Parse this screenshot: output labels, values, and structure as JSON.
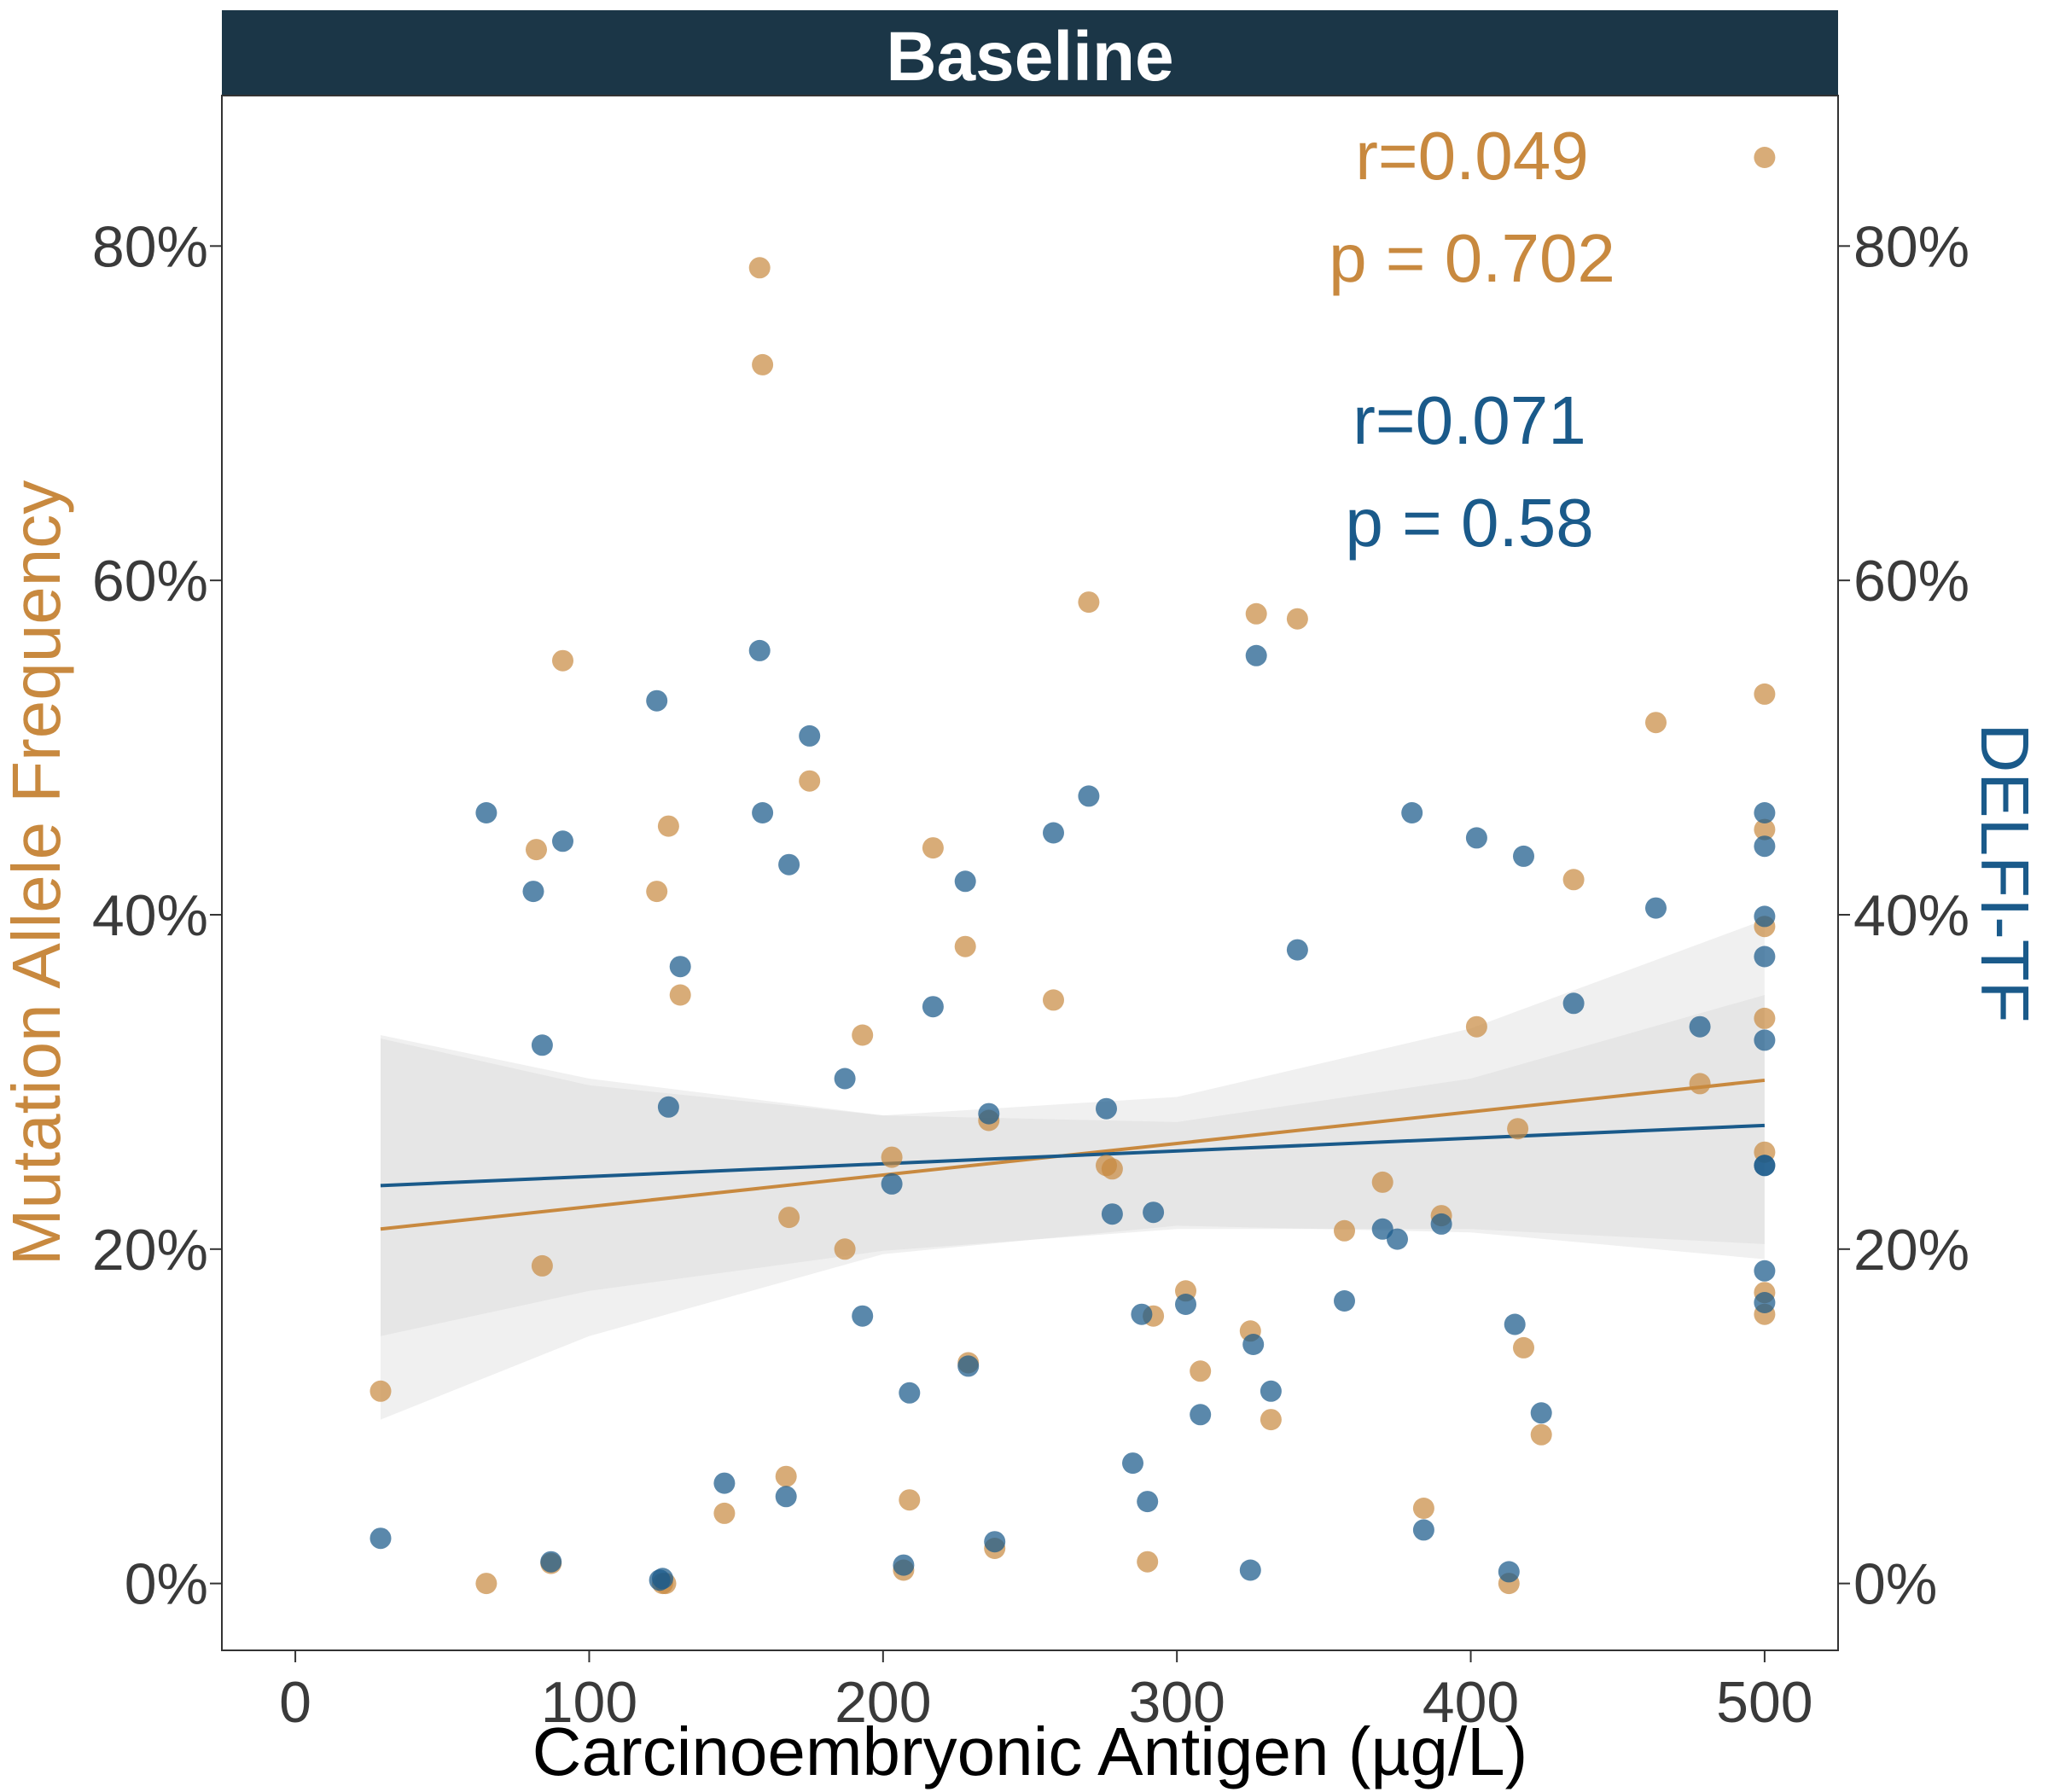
{
  "chart_data": {
    "type": "scatter",
    "title": "Baseline",
    "xlabel": "Carcinoembryonic Antigen (µg/L)",
    "ylabel_left": "Mutation Allele Frequency",
    "ylabel_right": "DELFI-TF",
    "xlim": [
      -25,
      525
    ],
    "ylim": [
      -0.04,
      0.89
    ],
    "x_ticks": [
      0,
      100,
      200,
      300,
      400,
      500
    ],
    "x_tick_labels": [
      "0",
      "100",
      "200",
      "300",
      "400",
      "500"
    ],
    "y_ticks": [
      0,
      0.2,
      0.4,
      0.6,
      0.8
    ],
    "y_tick_labels_left": [
      "0%",
      "20%",
      "40%",
      "60%",
      "80%"
    ],
    "y_tick_labels_right": [
      "0%",
      "20%",
      "40%",
      "60%",
      "80%"
    ],
    "grid": false,
    "colors": {
      "maf": "#C8893F",
      "delfi": "#1A5A8A",
      "title_bar": "#1B3647",
      "ci_band": "#D3D3D3",
      "axis_text": "#3A3A3A"
    },
    "series": [
      {
        "name": "Mutation Allele Frequency",
        "color": "#C8893F",
        "x": [
          29,
          65,
          84,
          87,
          91,
          82,
          123,
          125,
          126,
          127,
          131,
          146,
          158,
          159,
          167,
          168,
          175,
          187,
          193,
          203,
          207,
          209,
          217,
          228,
          229,
          236,
          238,
          258,
          270,
          276,
          278,
          290,
          292,
          303,
          308,
          325,
          327,
          332,
          341,
          357,
          370,
          384,
          390,
          402,
          413,
          416,
          418,
          424,
          435,
          463,
          478,
          500,
          500,
          500,
          500,
          500,
          500,
          500,
          500
        ],
        "y": [
          0.115,
          0.0,
          0.19,
          0.012,
          0.552,
          0.439,
          0.414,
          0.0,
          0.0,
          0.453,
          0.352,
          0.042,
          0.787,
          0.729,
          0.064,
          0.219,
          0.48,
          0.2,
          0.328,
          0.255,
          0.008,
          0.05,
          0.44,
          0.381,
          0.132,
          0.277,
          0.021,
          0.349,
          0.587,
          0.25,
          0.248,
          0.013,
          0.16,
          0.175,
          0.127,
          0.151,
          0.58,
          0.098,
          0.577,
          0.211,
          0.24,
          0.045,
          0.22,
          0.333,
          0.0,
          0.272,
          0.141,
          0.089,
          0.421,
          0.515,
          0.299,
          0.853,
          0.532,
          0.451,
          0.393,
          0.338,
          0.258,
          0.174,
          0.161
        ]
      },
      {
        "name": "DELFI-TF",
        "color": "#1A5A8A",
        "x": [
          29,
          65,
          81,
          84,
          87,
          91,
          123,
          124,
          125,
          127,
          131,
          146,
          158,
          159,
          167,
          168,
          175,
          187,
          193,
          203,
          207,
          209,
          217,
          228,
          229,
          236,
          238,
          258,
          270,
          276,
          278,
          285,
          288,
          290,
          292,
          303,
          308,
          325,
          326,
          327,
          332,
          341,
          357,
          370,
          375,
          380,
          384,
          390,
          402,
          413,
          415,
          418,
          424,
          435,
          463,
          478,
          500,
          500,
          500,
          500,
          500,
          500,
          500,
          500,
          500
        ],
        "y": [
          0.027,
          0.461,
          0.414,
          0.322,
          0.013,
          0.444,
          0.528,
          0.002,
          0.003,
          0.285,
          0.369,
          0.06,
          0.558,
          0.461,
          0.052,
          0.43,
          0.507,
          0.302,
          0.16,
          0.239,
          0.011,
          0.114,
          0.345,
          0.42,
          0.13,
          0.281,
          0.025,
          0.449,
          0.471,
          0.284,
          0.221,
          0.072,
          0.161,
          0.049,
          0.222,
          0.167,
          0.101,
          0.008,
          0.143,
          0.555,
          0.115,
          0.379,
          0.169,
          0.212,
          0.206,
          0.461,
          0.032,
          0.215,
          0.446,
          0.007,
          0.155,
          0.435,
          0.102,
          0.347,
          0.404,
          0.333,
          0.461,
          0.441,
          0.399,
          0.375,
          0.325,
          0.25,
          0.187,
          0.168,
          0.25
        ]
      }
    ],
    "fits": [
      {
        "name": "Mutation Allele Frequency",
        "color": "#C8893F",
        "x": [
          29,
          500
        ],
        "y": [
          0.212,
          0.301
        ],
        "ci_x": [
          29,
          100,
          200,
          300,
          400,
          500
        ],
        "ci_lower": [
          0.098,
          0.148,
          0.197,
          0.214,
          0.21,
          0.194
        ],
        "ci_upper": [
          0.326,
          0.298,
          0.28,
          0.291,
          0.332,
          0.397
        ]
      },
      {
        "name": "DELFI-TF",
        "color": "#1A5A8A",
        "x": [
          29,
          500
        ],
        "y": [
          0.238,
          0.274
        ],
        "ci_x": [
          29,
          100,
          200,
          300,
          400,
          500
        ],
        "ci_lower": [
          0.148,
          0.175,
          0.199,
          0.212,
          0.212,
          0.203
        ],
        "ci_upper": [
          0.328,
          0.302,
          0.28,
          0.276,
          0.302,
          0.352
        ]
      }
    ],
    "annotations": [
      {
        "series": "Mutation Allele Frequency",
        "r_text": "r=0.049",
        "p_text": "p = 0.702",
        "color": "#C8893F"
      },
      {
        "series": "DELFI-TF",
        "r_text": "r=0.071",
        "p_text": "p = 0.58",
        "color": "#1A5A8A"
      }
    ]
  }
}
